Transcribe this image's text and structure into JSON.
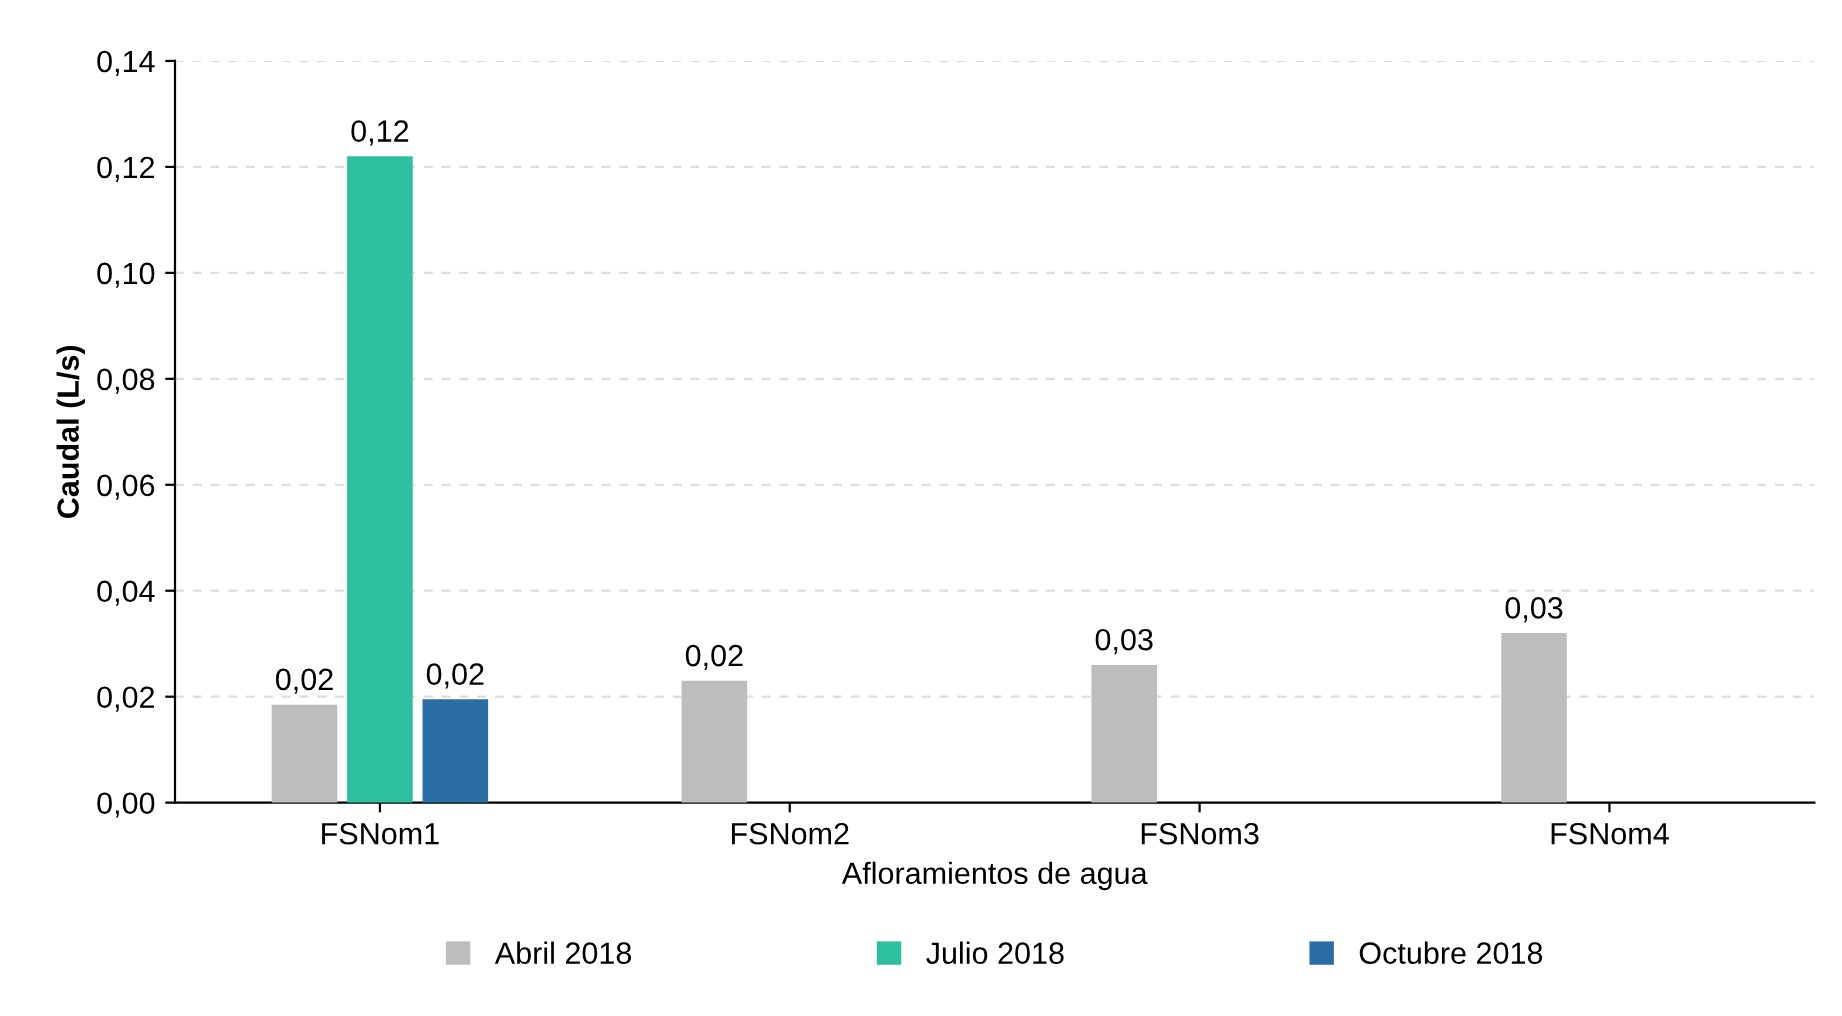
{
  "chart_data": {
    "type": "bar",
    "xlabel": "Afloramientos de agua",
    "ylabel": "Caudal (L/s)",
    "categories": [
      "FSNom1",
      "FSNom2",
      "FSNom3",
      "FSNom4"
    ],
    "series": [
      {
        "name": "Abril 2018",
        "color": "#bdbdbd",
        "values": [
          0.0185,
          0.023,
          0.026,
          0.032
        ],
        "value_labels": [
          "0,02",
          "0,02",
          "0,03",
          "0,03"
        ]
      },
      {
        "name": "Julio 2018",
        "color": "#2dbf9f",
        "values": [
          0.122,
          null,
          null,
          null
        ],
        "value_labels": [
          "0,12",
          null,
          null,
          null
        ]
      },
      {
        "name": "Octubre 2018",
        "color": "#2b6ea6",
        "values": [
          0.0195,
          null,
          null,
          null
        ],
        "value_labels": [
          "0,02",
          null,
          null,
          null
        ]
      }
    ],
    "ylim": [
      0,
      0.14
    ],
    "yticks": [
      {
        "value": 0,
        "label": "0,00"
      },
      {
        "value": 0.02,
        "label": "0,02"
      },
      {
        "value": 0.04,
        "label": "0,04"
      },
      {
        "value": 0.06,
        "label": "0,06"
      },
      {
        "value": 0.08,
        "label": "0,08"
      },
      {
        "value": 0.1,
        "label": "0,10"
      },
      {
        "value": 0.12,
        "label": "0,12"
      },
      {
        "value": 0.14,
        "label": "0,14"
      }
    ],
    "grid": "y",
    "legend": "bottom"
  }
}
